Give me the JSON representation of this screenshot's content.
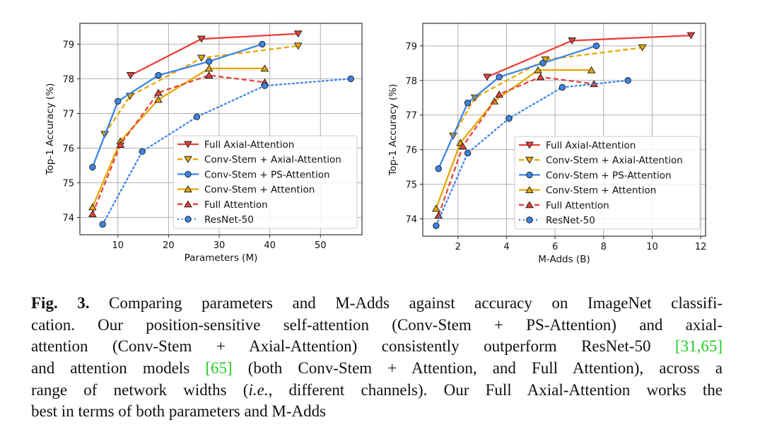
{
  "chart_data": [
    {
      "type": "line",
      "xlabel": "Parameters (M)",
      "ylabel": "Top-1 Accuracy (%)",
      "xlim": [
        2.5,
        58.2
      ],
      "ylim": [
        73.5,
        79.6
      ],
      "xticks": [
        10,
        20,
        30,
        40,
        50
      ],
      "yticks": [
        74,
        75,
        76,
        77,
        78,
        79
      ],
      "grid": true,
      "legend": "bottom-right",
      "series": [
        {
          "name": "Full Axial-Attention",
          "color": "#e8413b",
          "style": "solid",
          "marker": "triangle-down",
          "x": [
            12.5,
            26.5,
            45.6
          ],
          "y": [
            78.1,
            79.15,
            79.3
          ]
        },
        {
          "name": "Conv-Stem + Axial-Attention",
          "color": "#e8a800",
          "style": "dashed",
          "marker": "triangle-down",
          "x": [
            7.4,
            12.4,
            26.5,
            45.6
          ],
          "y": [
            76.4,
            77.5,
            78.6,
            78.95
          ]
        },
        {
          "name": "Conv-Stem + PS-Attention",
          "color": "#3c85e8",
          "style": "solid",
          "marker": "circle",
          "x": [
            5,
            10,
            18,
            28,
            38.5
          ],
          "y": [
            75.45,
            77.35,
            78.1,
            78.5,
            79.0
          ]
        },
        {
          "name": "Conv-Stem + Attention",
          "color": "#e8a800",
          "style": "solid",
          "marker": "triangle-up",
          "x": [
            5,
            10.5,
            18,
            28,
            39
          ],
          "y": [
            74.3,
            76.2,
            77.4,
            78.3,
            78.3
          ]
        },
        {
          "name": "Full Attention",
          "color": "#e8413b",
          "style": "dashed",
          "marker": "triangle-up",
          "x": [
            5,
            10.5,
            18,
            28,
            39
          ],
          "y": [
            74.1,
            76.1,
            77.6,
            78.1,
            77.9
          ]
        },
        {
          "name": "ResNet-50",
          "color": "#3c85e8",
          "style": "dotted",
          "marker": "circle",
          "x": [
            7,
            14.8,
            25.6,
            39,
            56
          ],
          "y": [
            73.8,
            75.9,
            76.9,
            77.8,
            78.0
          ]
        }
      ]
    },
    {
      "type": "line",
      "xlabel": "M-Adds (B)",
      "ylabel": "Top-1 Accuracy (%)",
      "xlim": [
        0.55,
        12.2
      ],
      "ylim": [
        73.5,
        79.65
      ],
      "xticks": [
        2,
        4,
        6,
        8,
        10,
        12
      ],
      "yticks": [
        74,
        75,
        76,
        77,
        78,
        79
      ],
      "grid": true,
      "legend": "bottom-right",
      "series": [
        {
          "name": "Full Axial-Attention",
          "color": "#e8413b",
          "style": "solid",
          "marker": "triangle-down",
          "x": [
            3.2,
            6.7,
            11.6
          ],
          "y": [
            78.1,
            79.15,
            79.3
          ]
        },
        {
          "name": "Conv-Stem + Axial-Attention",
          "color": "#e8a800",
          "style": "dashed",
          "marker": "triangle-down",
          "x": [
            1.8,
            2.7,
            5.6,
            9.6
          ],
          "y": [
            76.4,
            77.5,
            78.6,
            78.95
          ]
        },
        {
          "name": "Conv-Stem + PS-Attention",
          "color": "#3c85e8",
          "style": "solid",
          "marker": "circle",
          "x": [
            1.2,
            2.4,
            3.7,
            5.5,
            7.7
          ],
          "y": [
            75.45,
            77.35,
            78.1,
            78.5,
            79.0
          ]
        },
        {
          "name": "Conv-Stem + Attention",
          "color": "#e8a800",
          "style": "solid",
          "marker": "triangle-up",
          "x": [
            1.1,
            2.1,
            3.5,
            5.3,
            7.5
          ],
          "y": [
            74.3,
            76.2,
            77.4,
            78.3,
            78.3
          ]
        },
        {
          "name": "Full Attention",
          "color": "#e8413b",
          "style": "dashed",
          "marker": "triangle-up",
          "x": [
            1.2,
            2.2,
            3.7,
            5.4,
            7.6
          ],
          "y": [
            74.1,
            76.1,
            77.6,
            78.1,
            77.9
          ]
        },
        {
          "name": "ResNet-50",
          "color": "#3c85e8",
          "style": "dotted",
          "marker": "circle",
          "x": [
            1.1,
            2.4,
            4.1,
            6.3,
            9.0
          ],
          "y": [
            73.8,
            75.9,
            76.9,
            77.8,
            78.0
          ]
        }
      ]
    }
  ],
  "caption": {
    "lines": [
      [
        {
          "t": "Fig. 3.",
          "s": "b"
        },
        {
          "t": " Comparing parameters and M-Adds against accuracy on ImageNet classifi-"
        }
      ],
      [
        {
          "t": "cation. Our position-sensitive self-attention (Conv-Stem + PS-Attention) and axial-"
        }
      ],
      [
        {
          "t": "attention (Conv-Stem + Axial-Attention) consistently outperform ResNet-50 "
        },
        {
          "t": "[31,65]",
          "s": "g"
        }
      ],
      [
        {
          "t": "and attention models "
        },
        {
          "t": "[65]",
          "s": "g"
        },
        {
          "t": " (both Conv-Stem + Attention, and Full Attention), across a"
        }
      ],
      [
        {
          "t": "range of network widths ("
        },
        {
          "t": "i.e.",
          "s": "i"
        },
        {
          "t": ", different channels). Our Full Axial-Attention works the"
        }
      ],
      [
        {
          "t": "best in terms of both parameters and M-Adds"
        }
      ]
    ]
  }
}
